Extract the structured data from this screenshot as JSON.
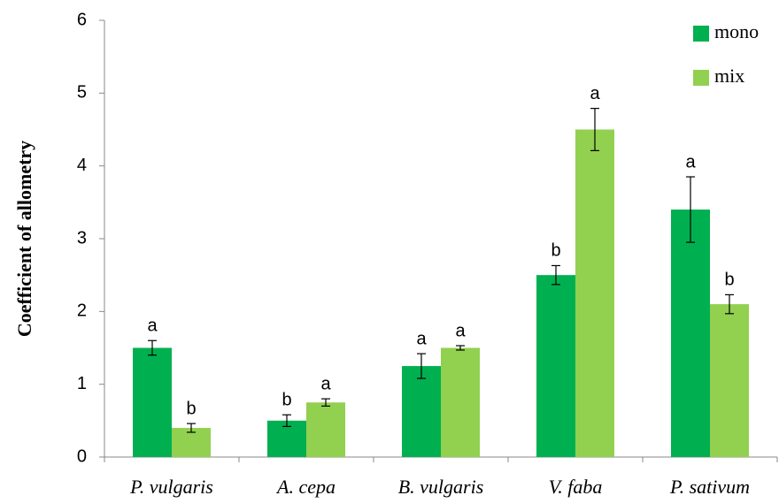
{
  "chart_data": {
    "type": "bar",
    "y_label": "Coefficient of allometry",
    "categories": [
      "P. vulgaris",
      "A. cepa",
      "B. vulgaris",
      "V. faba",
      "P. sativum"
    ],
    "series": [
      {
        "name": "mono",
        "color": "#00b050",
        "values": [
          1.5,
          0.5,
          1.25,
          2.5,
          3.4
        ],
        "errors": [
          0.1,
          0.08,
          0.17,
          0.13,
          0.45
        ],
        "letters": [
          "a",
          "b",
          "a",
          "b",
          "a"
        ]
      },
      {
        "name": "mix",
        "color": "#92d050",
        "values": [
          0.4,
          0.75,
          1.5,
          4.5,
          2.1
        ],
        "errors": [
          0.06,
          0.05,
          0.03,
          0.29,
          0.13
        ],
        "letters": [
          "b",
          "a",
          "a",
          "a",
          "b"
        ]
      }
    ],
    "ylim": [
      0,
      6
    ],
    "yticks": [
      0,
      1,
      2,
      3,
      4,
      5,
      6
    ],
    "legend": "top-right"
  }
}
